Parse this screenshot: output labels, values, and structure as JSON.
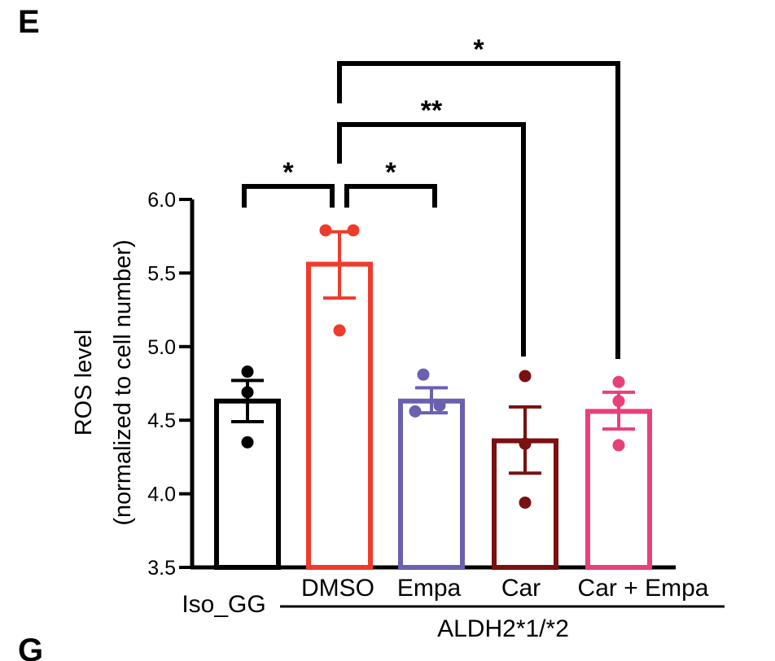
{
  "panel_letters": {
    "current": "E",
    "next": "G"
  },
  "chart_data": {
    "type": "bar",
    "title": "",
    "ylabel_lines": [
      "ROS level",
      "(normalized to cell number)"
    ],
    "ylim": [
      3.5,
      6.0
    ],
    "yticks": [
      {
        "value": 3.5,
        "label": "3.5"
      },
      {
        "value": 4.0,
        "label": "4.0"
      },
      {
        "value": 4.5,
        "label": "4.5"
      },
      {
        "value": 5.0,
        "label": "5.0"
      },
      {
        "value": 5.5,
        "label": "5.5"
      },
      {
        "value": 6.0,
        "label": "6.0"
      }
    ],
    "group_label": "ALDH2*1/*2",
    "categories": [
      {
        "label": "Iso_GG",
        "mean": 4.63,
        "sem_low": 4.49,
        "sem_high": 4.77,
        "color": "#000000",
        "points": [
          4.83,
          4.69,
          4.35
        ]
      },
      {
        "label": "DMSO",
        "mean": 5.56,
        "sem_low": 5.33,
        "sem_high": 5.78,
        "color": "#ef3b2c",
        "points": [
          5.79,
          5.79,
          5.11
        ]
      },
      {
        "label": "Empa",
        "mean": 4.63,
        "sem_low": 4.55,
        "sem_high": 4.72,
        "color": "#6a60b0",
        "points": [
          4.81,
          4.6,
          4.56
        ]
      },
      {
        "label": "Car",
        "mean": 4.36,
        "sem_low": 4.14,
        "sem_high": 4.59,
        "color": "#7a1010",
        "points": [
          4.8,
          4.34,
          3.94
        ]
      },
      {
        "label": "Car + Empa",
        "mean": 4.56,
        "sem_low": 4.44,
        "sem_high": 4.69,
        "color": "#e8407a",
        "points": [
          4.76,
          4.63,
          4.33
        ]
      }
    ],
    "significance": [
      {
        "from": "Iso_GG",
        "to": "DMSO",
        "label": "*"
      },
      {
        "from": "DMSO",
        "to": "Empa",
        "label": "*"
      },
      {
        "from": "DMSO",
        "to": "Car",
        "label": "**"
      },
      {
        "from": "DMSO",
        "to": "Car + Empa",
        "label": "*"
      }
    ]
  }
}
